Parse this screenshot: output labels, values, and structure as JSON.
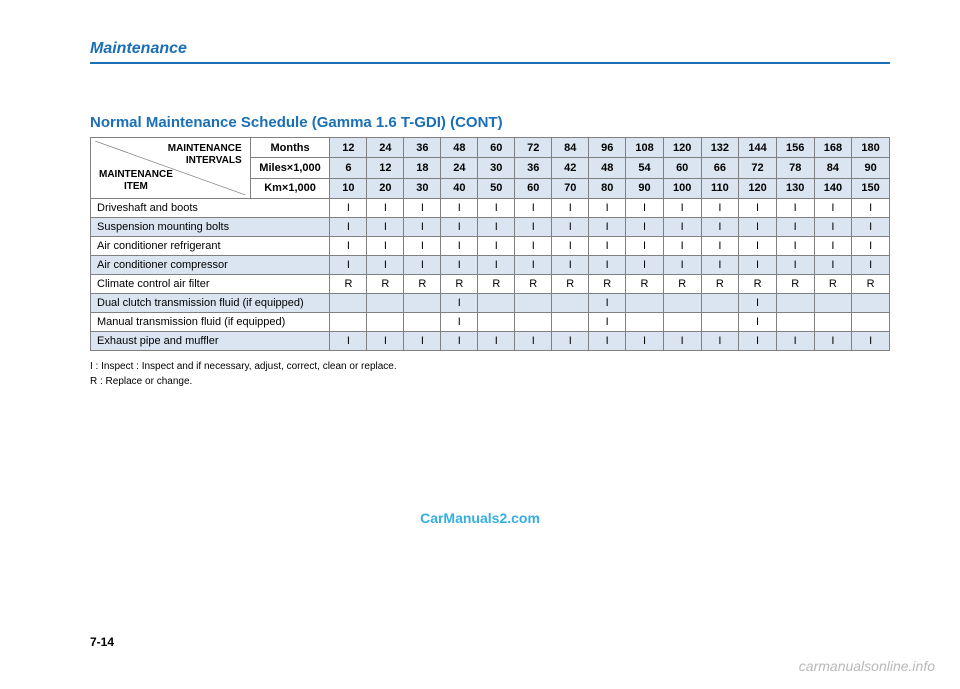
{
  "section_header": "Maintenance",
  "schedule_title": "Normal Maintenance Schedule (Gamma 1.6 T-GDI) (CONT)",
  "corner": {
    "top": "MAINTENANCE\nINTERVALS",
    "bottom": "MAINTENANCE\nITEM"
  },
  "interval_rows": [
    {
      "label": "Months",
      "values": [
        "12",
        "24",
        "36",
        "48",
        "60",
        "72",
        "84",
        "96",
        "108",
        "120",
        "132",
        "144",
        "156",
        "168",
        "180"
      ]
    },
    {
      "label": "Miles×1,000",
      "values": [
        "6",
        "12",
        "18",
        "24",
        "30",
        "36",
        "42",
        "48",
        "54",
        "60",
        "66",
        "72",
        "78",
        "84",
        "90"
      ]
    },
    {
      "label": "Km×1,000",
      "values": [
        "10",
        "20",
        "30",
        "40",
        "50",
        "60",
        "70",
        "80",
        "90",
        "100",
        "110",
        "120",
        "130",
        "140",
        "150"
      ]
    }
  ],
  "items": [
    {
      "name": "Driveshaft and boots",
      "cells": [
        "I",
        "I",
        "I",
        "I",
        "I",
        "I",
        "I",
        "I",
        "I",
        "I",
        "I",
        "I",
        "I",
        "I",
        "I"
      ],
      "alt": false
    },
    {
      "name": "Suspension mounting bolts",
      "cells": [
        "I",
        "I",
        "I",
        "I",
        "I",
        "I",
        "I",
        "I",
        "I",
        "I",
        "I",
        "I",
        "I",
        "I",
        "I"
      ],
      "alt": true
    },
    {
      "name": "Air conditioner refrigerant",
      "cells": [
        "I",
        "I",
        "I",
        "I",
        "I",
        "I",
        "I",
        "I",
        "I",
        "I",
        "I",
        "I",
        "I",
        "I",
        "I"
      ],
      "alt": false
    },
    {
      "name": "Air conditioner compressor",
      "cells": [
        "I",
        "I",
        "I",
        "I",
        "I",
        "I",
        "I",
        "I",
        "I",
        "I",
        "I",
        "I",
        "I",
        "I",
        "I"
      ],
      "alt": true
    },
    {
      "name": "Climate control air filter",
      "cells": [
        "R",
        "R",
        "R",
        "R",
        "R",
        "R",
        "R",
        "R",
        "R",
        "R",
        "R",
        "R",
        "R",
        "R",
        "R"
      ],
      "alt": false
    },
    {
      "name": "Dual clutch transmission fluid (if equipped)",
      "cells": [
        "",
        "",
        "",
        "I",
        "",
        "",
        "",
        "I",
        "",
        "",
        "",
        "I",
        "",
        "",
        ""
      ],
      "alt": true
    },
    {
      "name": "Manual transmission fluid (if equipped)",
      "cells": [
        "",
        "",
        "",
        "I",
        "",
        "",
        "",
        "I",
        "",
        "",
        "",
        "I",
        "",
        "",
        ""
      ],
      "alt": false
    },
    {
      "name": "Exhaust pipe and muffler",
      "cells": [
        "I",
        "I",
        "I",
        "I",
        "I",
        "I",
        "I",
        "I",
        "I",
        "I",
        "I",
        "I",
        "I",
        "I",
        "I"
      ],
      "alt": true
    }
  ],
  "legend": {
    "line1": "I   : Inspect : Inspect and if necessary, adjust, correct, clean or replace.",
    "line2": "R : Replace or change."
  },
  "watermark1": "CarManuals2.com",
  "page_num": "7-14",
  "watermark2": "carmanualsonline.info",
  "colors": {
    "accent": "#1a6fb5",
    "header_bg": "#dbe5f1",
    "border": "#808080",
    "wm1": "#1fa7e0",
    "wm2": "#b8b8b8"
  }
}
